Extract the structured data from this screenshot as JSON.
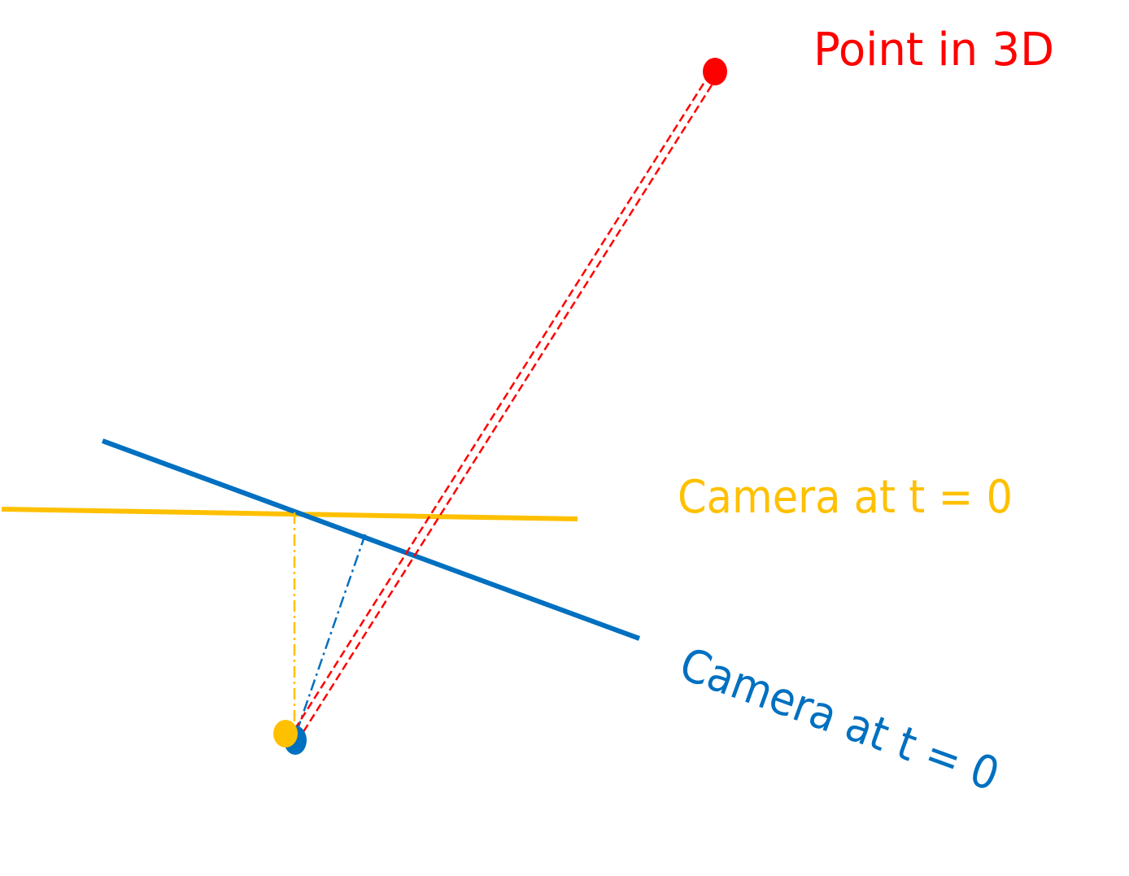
{
  "labels": {
    "point": "Point in 3D",
    "camera_a": "Camera at t = 0",
    "camera_b": "Camera at t = 0"
  },
  "colors": {
    "point": "#ff0000",
    "camera_a": "#ffc000",
    "camera_b": "#0070c0",
    "background": "#ffffff"
  }
}
